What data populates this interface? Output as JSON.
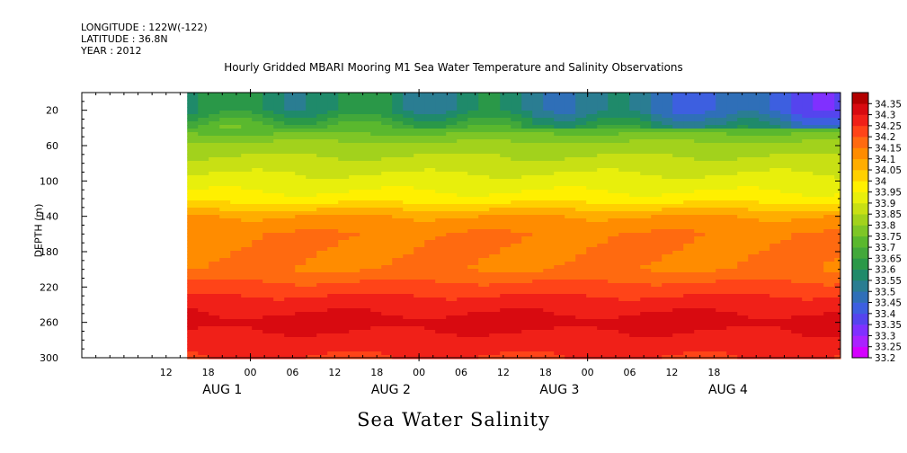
{
  "header": {
    "longitude": "LONGITUDE : 122W(-122)",
    "latitude": "LATITUDE : 36.8N",
    "year": "YEAR : 2012"
  },
  "chart_data": {
    "type": "heatmap",
    "title": "Hourly Gridded MBARI Mooring M1 Sea Water Temperature and Salinity Observations",
    "bottom_title": "Sea Water Salinity",
    "ylabel": "DEPTH (m)",
    "xlabel": "",
    "x_range_hours": [
      0,
      108
    ],
    "data_start_hour": 15,
    "ylim": [
      300,
      0
    ],
    "y_ticks": [
      20,
      60,
      100,
      140,
      180,
      220,
      260,
      300
    ],
    "x_hour_ticks": [
      {
        "label": "12",
        "hour": 12
      },
      {
        "label": "18",
        "hour": 18
      },
      {
        "label": "00",
        "hour": 24
      },
      {
        "label": "06",
        "hour": 30
      },
      {
        "label": "12",
        "hour": 36
      },
      {
        "label": "18",
        "hour": 42
      },
      {
        "label": "00",
        "hour": 48
      },
      {
        "label": "06",
        "hour": 54
      },
      {
        "label": "12",
        "hour": 60
      },
      {
        "label": "18",
        "hour": 66
      },
      {
        "label": "00",
        "hour": 72
      },
      {
        "label": "06",
        "hour": 78
      },
      {
        "label": "12",
        "hour": 84
      },
      {
        "label": "18",
        "hour": 90
      }
    ],
    "x_day_labels": [
      {
        "label": "AUG  1",
        "hour": 20
      },
      {
        "label": "AUG  2",
        "hour": 44
      },
      {
        "label": "AUG  3",
        "hour": 68
      },
      {
        "label": "AUG  4",
        "hour": 92
      }
    ],
    "levels": [
      33.2,
      33.25,
      33.3,
      33.35,
      33.4,
      33.45,
      33.5,
      33.55,
      33.6,
      33.65,
      33.7,
      33.75,
      33.8,
      33.85,
      33.9,
      33.95,
      34,
      34.05,
      34.1,
      34.15,
      34.2,
      34.25,
      34.3,
      34.35
    ],
    "level_labels": [
      "33.2",
      "33.25",
      "33.3",
      "33.35",
      "33.4",
      "33.45",
      "33.5",
      "33.55",
      "33.6",
      "33.65",
      "33.7",
      "33.75",
      "33.8",
      "33.85",
      "33.9",
      "33.95",
      "34",
      "34.05",
      "34.1",
      "34.15",
      "34.2",
      "34.25",
      "34.3",
      "34.35"
    ],
    "colors": [
      "#d400ff",
      "#aa22ff",
      "#8030ff",
      "#5544ee",
      "#3d5fe0",
      "#2f6fb8",
      "#2a7d92",
      "#1f8a6a",
      "#2a9848",
      "#42a83a",
      "#5ab82e",
      "#7ec626",
      "#a2d21c",
      "#c8e014",
      "#e8ef0c",
      "#fff000",
      "#ffd000",
      "#ffad00",
      "#ff8c00",
      "#ff6a10",
      "#ff4418",
      "#f02018",
      "#d80a10",
      "#b20000"
    ],
    "depth_profile": [
      {
        "depth": 5,
        "value": 33.6
      },
      {
        "depth": 20,
        "value": 33.6
      },
      {
        "depth": 40,
        "value": 33.72
      },
      {
        "depth": 60,
        "value": 33.82
      },
      {
        "depth": 80,
        "value": 33.87
      },
      {
        "depth": 100,
        "value": 33.92
      },
      {
        "depth": 120,
        "value": 33.97
      },
      {
        "depth": 140,
        "value": 34.1
      },
      {
        "depth": 160,
        "value": 34.15
      },
      {
        "depth": 180,
        "value": 34.15
      },
      {
        "depth": 200,
        "value": 34.15
      },
      {
        "depth": 220,
        "value": 34.22
      },
      {
        "depth": 240,
        "value": 34.28
      },
      {
        "depth": 260,
        "value": 34.32
      },
      {
        "depth": 280,
        "value": 34.28
      },
      {
        "depth": 300,
        "value": 34.25
      }
    ]
  }
}
